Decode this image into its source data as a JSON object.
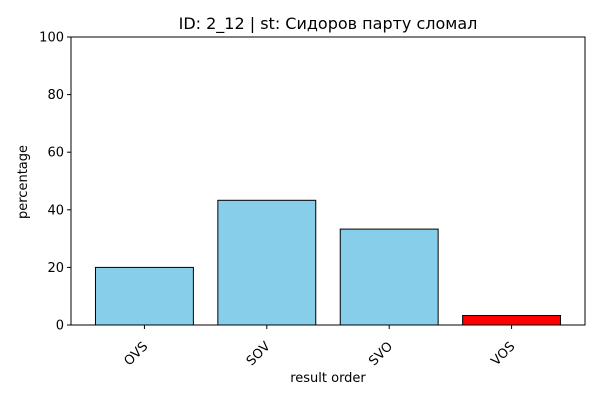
{
  "chart_data": {
    "type": "bar",
    "title": "ID: 2_12 | st: Сидоров парту сломал",
    "xlabel": "result order",
    "ylabel": "percentage",
    "categories": [
      "OVS",
      "SOV",
      "SVO",
      "VOS"
    ],
    "values": [
      20.0,
      43.3,
      33.3,
      3.3
    ],
    "bar_colors": [
      "#87CEEB",
      "#87CEEB",
      "#87CEEB",
      "#FF0000"
    ],
    "ylim": [
      0,
      100
    ],
    "yticks": [
      "0",
      "20",
      "40",
      "60",
      "80",
      "100"
    ],
    "grid": false,
    "legend": "none"
  }
}
